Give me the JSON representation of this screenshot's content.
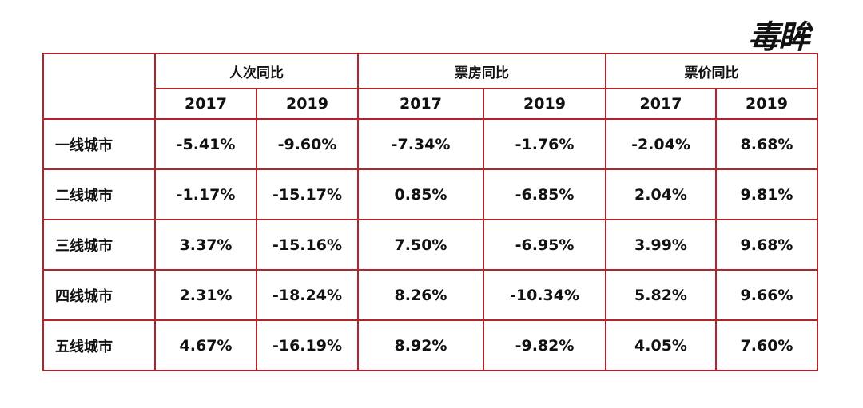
{
  "logo": "毒眸",
  "table": {
    "groups": [
      "人次同比",
      "票房同比",
      "票价同比"
    ],
    "years": [
      "2017",
      "2019",
      "2017",
      "2019",
      "2017",
      "2019"
    ],
    "rows": [
      [
        "一线城市",
        "-5.41%",
        "-9.60%",
        "-7.34%",
        "-1.76%",
        "-2.04%",
        "8.68%"
      ],
      [
        "二线城市",
        "-1.17%",
        "-15.17%",
        "0.85%",
        "-6.85%",
        "2.04%",
        "9.81%"
      ],
      [
        "三线城市",
        "3.37%",
        "-15.16%",
        "7.50%",
        "-6.95%",
        "3.99%",
        "9.68%"
      ],
      [
        "四线城市",
        "2.31%",
        "-18.24%",
        "8.26%",
        "-10.34%",
        "5.82%",
        "9.66%"
      ],
      [
        "五线城市",
        "4.67%",
        "-16.19%",
        "8.92%",
        "-9.82%",
        "4.05%",
        "7.60%"
      ]
    ]
  }
}
